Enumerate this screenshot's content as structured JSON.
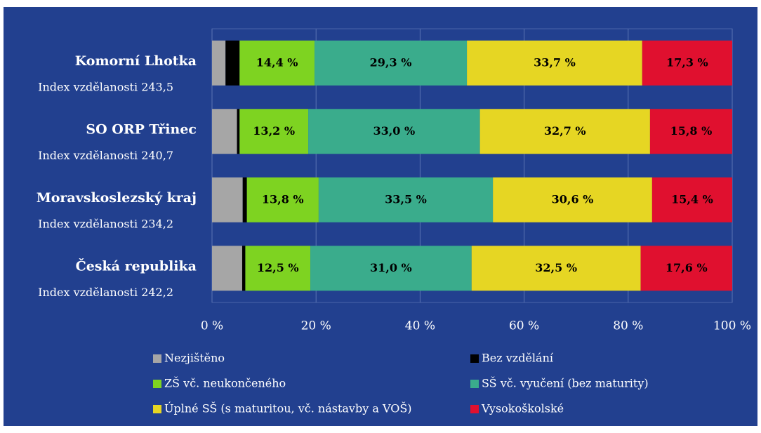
{
  "chart_data": {
    "type": "stacked_barh",
    "categories": [
      "Komorní Lhotka",
      "SO ORP Třinec",
      "Moravskoslezský kraj",
      "Česká republika"
    ],
    "category_notes": [
      "Index vzdělanosti 243,5",
      "Index vzdělanosti 240,7",
      "Index vzdělanosti 234,2",
      "Index vzdělanosti 242,2"
    ],
    "series": [
      {
        "name": "Nezjištěno",
        "color": "#a6a6a6",
        "values": [
          2.6,
          4.8,
          5.9,
          5.8
        ]
      },
      {
        "name": "Bez vzdělání",
        "color": "#000000",
        "values": [
          2.7,
          0.5,
          0.8,
          0.6
        ]
      },
      {
        "name": "ZŠ vč. neukončeného",
        "color": "#7ed321",
        "values": [
          14.4,
          13.2,
          13.8,
          12.5
        ],
        "value_labels": [
          "14,4 %",
          "13,2 %",
          "13,8 %",
          "12,5 %"
        ]
      },
      {
        "name": "SŠ vč. vyučení (bez maturity)",
        "color": "#3aac8c",
        "values": [
          29.3,
          33.0,
          33.5,
          31.0
        ],
        "value_labels": [
          "29,3 %",
          "33,0 %",
          "33,5 %",
          "31,0 %"
        ]
      },
      {
        "name": "Úplné SŠ (s maturitou, vč. nástavby a VOŠ)",
        "color": "#e6d623",
        "values": [
          33.7,
          32.7,
          30.6,
          32.5
        ],
        "value_labels": [
          "33,7 %",
          "32,7 %",
          "30,6 %",
          "32,5 %"
        ]
      },
      {
        "name": "Vysokoškolské",
        "color": "#e0102f",
        "values": [
          17.3,
          15.8,
          15.4,
          17.6
        ],
        "value_labels": [
          "17,3 %",
          "15,8 %",
          "15,4 %",
          "17,6 %"
        ]
      }
    ],
    "xlim": [
      0,
      100
    ],
    "xticks": [
      {
        "value": 0,
        "label": "0 %"
      },
      {
        "value": 20,
        "label": "20 %"
      },
      {
        "value": 40,
        "label": "40 %"
      },
      {
        "value": 60,
        "label": "60 %"
      },
      {
        "value": 80,
        "label": "80 %"
      },
      {
        "value": 100,
        "label": "100 %"
      }
    ],
    "grid": true,
    "legend": "bottom"
  }
}
